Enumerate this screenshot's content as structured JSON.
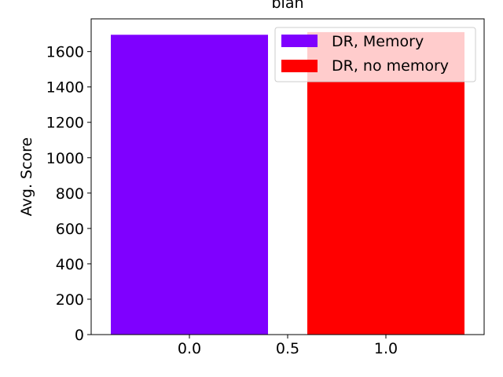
{
  "chart_data": {
    "type": "bar",
    "title": "blah",
    "xlabel": "",
    "ylabel": "Avg. Score",
    "x": [
      0.0,
      1.0
    ],
    "bar_width": 0.8,
    "xlim": [
      -0.5,
      1.5
    ],
    "ylim": [
      0,
      1785
    ],
    "xticks": [
      0.0,
      0.5,
      1.0
    ],
    "xtick_labels": [
      "0.0",
      "0.5",
      "1.0"
    ],
    "yticks": [
      0,
      200,
      400,
      600,
      800,
      1000,
      1200,
      1400,
      1600
    ],
    "ytick_labels": [
      "0",
      "200",
      "400",
      "600",
      "800",
      "1000",
      "1200",
      "1400",
      "1600"
    ],
    "series": [
      {
        "name": "DR, Memory",
        "color": "#7f00ff",
        "x": 0.0,
        "value": 1695
      },
      {
        "name": "DR, no memory",
        "color": "#ff0000",
        "x": 1.0,
        "value": 1710
      }
    ],
    "grid": false,
    "legend_placement": "top-right"
  }
}
